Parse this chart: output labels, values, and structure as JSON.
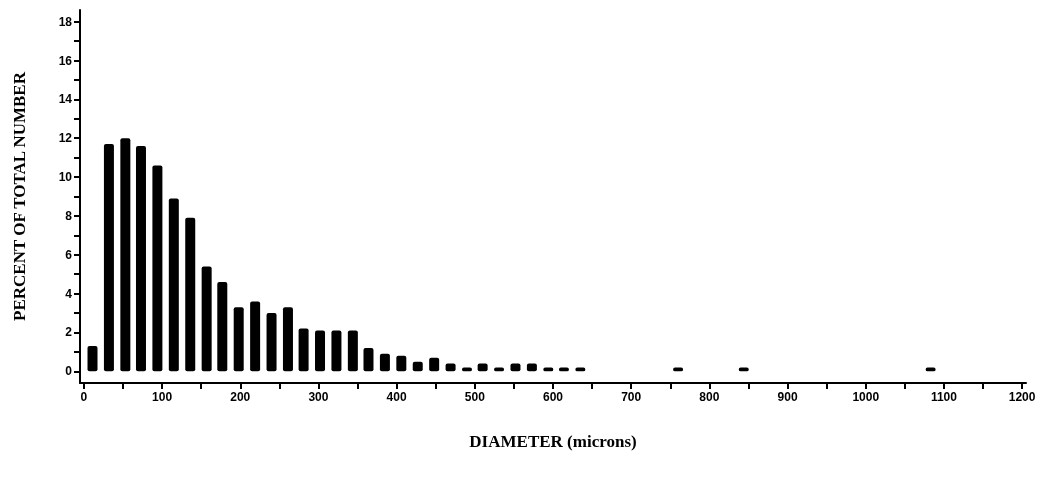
{
  "chart_data": {
    "type": "bar",
    "xlabel": "DIAMETER (microns)",
    "ylabel": "PERCENT OF TOTAL NUMBER",
    "color": "#000000",
    "x": [
      11,
      32,
      53,
      73,
      94,
      115,
      136,
      157,
      177,
      198,
      219,
      240,
      261,
      281,
      302,
      323,
      344,
      364,
      385,
      406,
      427,
      448,
      469,
      490,
      510,
      531,
      552,
      573,
      594,
      614,
      635,
      760,
      844,
      1083
    ],
    "values": [
      1.3,
      11.7,
      12.0,
      11.6,
      10.6,
      8.9,
      7.9,
      5.4,
      4.6,
      3.3,
      3.6,
      3.0,
      3.3,
      2.2,
      2.1,
      2.1,
      2.1,
      1.2,
      0.9,
      0.8,
      0.5,
      0.7,
      0.4,
      0.2,
      0.4,
      0.2,
      0.4,
      0.4,
      0.2,
      0.2,
      0.2,
      0.2,
      0.2,
      0.2
    ],
    "xlim": [
      -5,
      1205
    ],
    "xticks": [
      0,
      {
        "value": 50,
        "label": null
      },
      100,
      {
        "value": 150,
        "label": null
      },
      200,
      {
        "value": 250,
        "label": null
      },
      300,
      {
        "value": 350,
        "label": null
      },
      400,
      {
        "value": 450,
        "label": null
      },
      500,
      {
        "value": 550,
        "label": null
      },
      600,
      {
        "value": 650,
        "label": null
      },
      700,
      {
        "value": 750,
        "label": null
      },
      800,
      {
        "value": 850,
        "label": null
      },
      900,
      {
        "value": 950,
        "label": null
      },
      1000,
      {
        "value": 1050,
        "label": null
      },
      1100,
      {
        "value": 1150,
        "label": null
      },
      1200
    ],
    "ylim": [
      -0.6,
      18.6
    ],
    "yticks": [
      0,
      {
        "value": 1,
        "label": null
      },
      2,
      {
        "value": 3,
        "label": null
      },
      4,
      {
        "value": 5,
        "label": null
      },
      6,
      {
        "value": 7,
        "label": null
      },
      8,
      {
        "value": 9,
        "label": null
      },
      10,
      {
        "value": 11,
        "label": null
      },
      12,
      {
        "value": 13,
        "label": null
      },
      14,
      {
        "value": 15,
        "label": null
      },
      16,
      {
        "value": 17,
        "label": null
      },
      18
    ],
    "grid": false
  }
}
